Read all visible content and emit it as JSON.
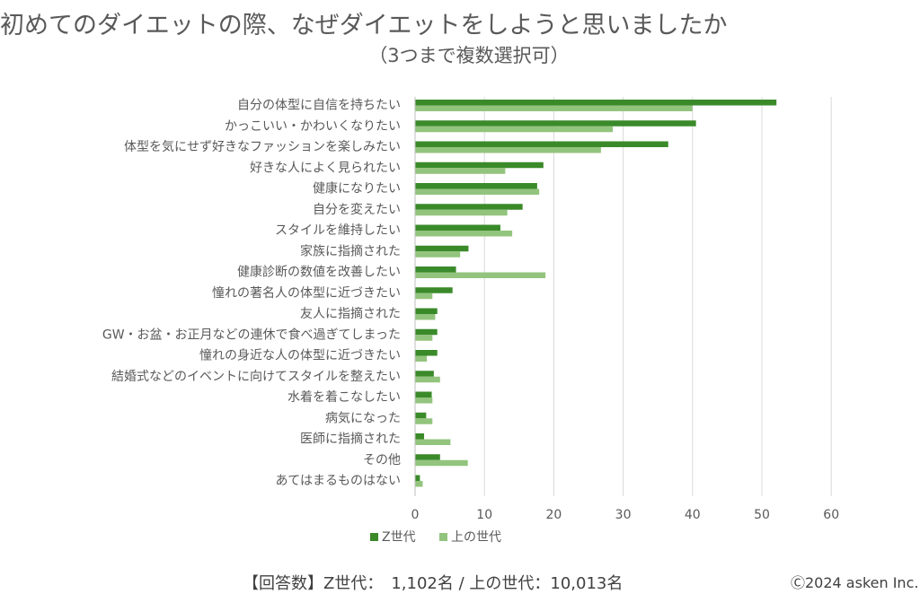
{
  "page": {
    "title": "初めてのダイエットの際、なぜダイエットをしようと思いましたか",
    "subtitle": "（3つまで複数選択可）",
    "footer_note": "【回答数】Z世代：　1,102名 / 上の世代：10,013名",
    "copyright": "Ⓒ2024 asken Inc."
  },
  "chart_data": {
    "type": "bar",
    "orientation": "horizontal",
    "title": "初めてのダイエットの際、なぜダイエットをしようと思いましたか",
    "subtitle": "（3つまで複数選択可）",
    "xlim": [
      0,
      60
    ],
    "xticks": [
      0,
      10,
      20,
      30,
      40,
      50,
      60
    ],
    "grid": true,
    "legend_position": "bottom",
    "categories": [
      "自分の体型に自信を持ちたい",
      "かっこいい・かわいくなりたい",
      "体型を気にせず好きなファッションを楽しみたい",
      "好きな人によく見られたい",
      "健康になりたい",
      "自分を変えたい",
      "スタイルを維持したい",
      "家族に指摘された",
      "健康診断の数値を改善したい",
      "憧れの著名人の体型に近づきたい",
      "友人に指摘された",
      "GW・お盆・お正月などの連休で食べ過ぎてしまった",
      "憧れの身近な人の体型に近づきたい",
      "結婚式などのイベントに向けてスタイルを整えたい",
      "水着を着こなしたい",
      "病気になった",
      "医師に指摘された",
      "その他",
      "あてはまるものはない"
    ],
    "series": [
      {
        "name": "Z世代",
        "color": "#3a8a2a",
        "values": [
          52.1,
          40.5,
          36.5,
          18.5,
          17.6,
          15.5,
          12.3,
          7.7,
          5.9,
          5.4,
          3.2,
          3.2,
          3.2,
          2.7,
          2.4,
          1.6,
          1.3,
          3.6,
          0.7
        ]
      },
      {
        "name": "上の世代",
        "color": "#93c47d",
        "values": [
          40.0,
          28.5,
          26.8,
          13.0,
          17.9,
          13.3,
          14.0,
          6.5,
          18.8,
          2.5,
          2.9,
          2.5,
          1.7,
          3.6,
          2.5,
          2.5,
          5.1,
          7.6,
          1.1
        ]
      }
    ]
  }
}
